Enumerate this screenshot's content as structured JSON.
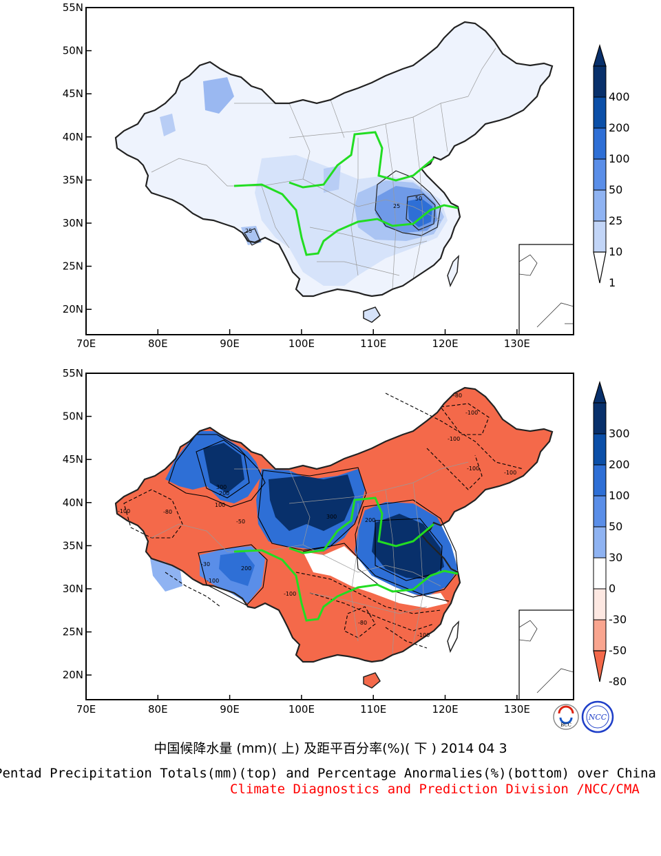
{
  "top_map": {
    "lat_labels": [
      "55N",
      "50N",
      "45N",
      "40N",
      "35N",
      "30N",
      "25N",
      "20N"
    ],
    "lon_labels": [
      "70E",
      "80E",
      "90E",
      "100E",
      "110E",
      "120E",
      "130E"
    ],
    "colorbar": {
      "labels": [
        "400",
        "200",
        "100",
        "50",
        "25",
        "10",
        "1"
      ],
      "colors": [
        "#08306b",
        "#0b4fa8",
        "#2e6fd6",
        "#5a8ee8",
        "#8fb3f2",
        "#c2d5f7",
        "#ffffff"
      ]
    },
    "contour_labels": [
      "50",
      "25",
      "25"
    ]
  },
  "bottom_map": {
    "lat_labels": [
      "55N",
      "50N",
      "45N",
      "40N",
      "35N",
      "30N",
      "25N",
      "20N"
    ],
    "lon_labels": [
      "70E",
      "80E",
      "90E",
      "100E",
      "110E",
      "120E",
      "130E"
    ],
    "colorbar": {
      "labels": [
        "300",
        "200",
        "100",
        "50",
        "30",
        "0",
        "-30",
        "-50",
        "-80"
      ],
      "colors": [
        "#08306b",
        "#0b4fa8",
        "#2e6fd6",
        "#5a8ee8",
        "#8fb3f2",
        "#ffffff",
        "#fde8e2",
        "#f9a58f",
        "#f4694a"
      ]
    },
    "contour_labels": [
      "-80",
      "-100",
      "-100",
      "-100",
      "-100",
      "300",
      "200",
      "100",
      "-50",
      "-80",
      "-100",
      "200",
      "300",
      "-100",
      "-80",
      "200",
      "-30",
      "-100",
      "-100"
    ]
  },
  "logos": {
    "bcc": "BCC",
    "ncc": "NCC"
  },
  "titles": {
    "chinese": "中国候降水量 (mm)( 上) 及距平百分率(%)( 下 ) 2014 04 3",
    "english": "Pentad Precipitation Totals(mm)(top) and Percentage Anormalies(%)(bottom) over China",
    "org": "Climate Diagnostics and Prediction Division /NCC/CMA"
  },
  "colors": {
    "river": "#22dd22",
    "border": "#222222",
    "province": "#9a9a9a",
    "title_org": "#ff0000"
  }
}
